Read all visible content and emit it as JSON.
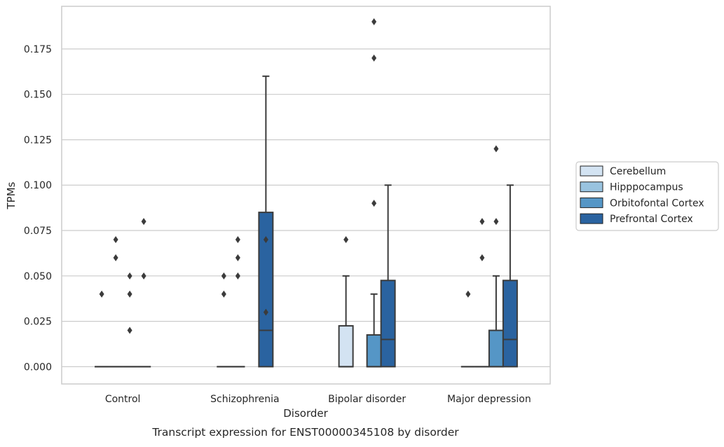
{
  "chart_data": {
    "type": "box",
    "xlabel": "Disorder",
    "ylabel": "TPMs",
    "caption": "Transcript expression for ENST00000345108 by disorder",
    "categories": [
      "Control",
      "Schizophrenia",
      "Bipolar disorder",
      "Major depression"
    ],
    "ylim": [
      -0.0095,
      0.1985
    ],
    "yticks": [
      "0.000",
      "0.025",
      "0.050",
      "0.075",
      "0.100",
      "0.125",
      "0.150",
      "0.175"
    ],
    "grid": "horizontal",
    "legend_position": "center-right",
    "series": [
      {
        "name": "Cerebellum",
        "color": "#d3e3f2",
        "boxes": [
          {
            "q1": 0,
            "median": 0,
            "q3": 0,
            "whisker_low": 0,
            "whisker_high": 0,
            "outliers": [
              0.04
            ]
          },
          {
            "q1": 0,
            "median": 0,
            "q3": 0,
            "whisker_low": 0,
            "whisker_high": 0,
            "outliers": [
              0.04,
              0.05
            ]
          },
          {
            "q1": 0,
            "median": 0,
            "q3": 0.0225,
            "whisker_low": 0,
            "whisker_high": 0.05,
            "outliers": [
              0.07
            ]
          },
          {
            "q1": 0,
            "median": 0,
            "q3": 0,
            "whisker_low": 0,
            "whisker_high": 0,
            "outliers": [
              0.04
            ]
          }
        ]
      },
      {
        "name": "Hipppocampus",
        "color": "#99c3df",
        "boxes": [
          {
            "q1": 0,
            "median": 0,
            "q3": 0,
            "whisker_low": 0,
            "whisker_high": 0,
            "outliers": [
              0.07,
              0.06
            ]
          },
          {
            "q1": 0,
            "median": 0,
            "q3": 0,
            "whisker_low": 0,
            "whisker_high": 0,
            "outliers": [
              0.07,
              0.06,
              0.05
            ]
          },
          null,
          {
            "q1": 0,
            "median": 0,
            "q3": 0,
            "whisker_low": 0,
            "whisker_high": 0,
            "outliers": [
              0.06,
              0.08
            ]
          }
        ]
      },
      {
        "name": "Orbitofontal Cortex",
        "color": "#5596c6",
        "boxes": [
          {
            "q1": 0,
            "median": 0,
            "q3": 0,
            "whisker_low": 0,
            "whisker_high": 0,
            "outliers": [
              0.05,
              0.04,
              0.02
            ]
          },
          null,
          {
            "q1": 0,
            "median": 0,
            "q3": 0.0175,
            "whisker_low": 0,
            "whisker_high": 0.04,
            "outliers": [
              0.09,
              0.19,
              0.17
            ]
          },
          {
            "q1": 0,
            "median": 0,
            "q3": 0.02,
            "whisker_low": 0,
            "whisker_high": 0.05,
            "outliers": [
              0.08,
              0.12
            ]
          }
        ]
      },
      {
        "name": "Prefrontal Cortex",
        "color": "#2a63a0",
        "boxes": [
          {
            "q1": 0,
            "median": 0,
            "q3": 0,
            "whisker_low": 0,
            "whisker_high": 0,
            "outliers": [
              0.08,
              0.05
            ]
          },
          {
            "q1": 0,
            "median": 0.02,
            "q3": 0.085,
            "whisker_low": 0,
            "whisker_high": 0.16,
            "outliers": [
              0.07,
              0.03
            ]
          },
          {
            "q1": 0,
            "median": 0.015,
            "q3": 0.0475,
            "whisker_low": 0,
            "whisker_high": 0.1,
            "outliers": []
          },
          {
            "q1": 0,
            "median": 0.015,
            "q3": 0.0475,
            "whisker_low": 0,
            "whisker_high": 0.1,
            "outliers": []
          }
        ]
      }
    ],
    "outlier_marker": "diamond",
    "line_color": "#3b3b3b",
    "grid_color": "#cccccc",
    "frame_color": "#cccccc"
  }
}
